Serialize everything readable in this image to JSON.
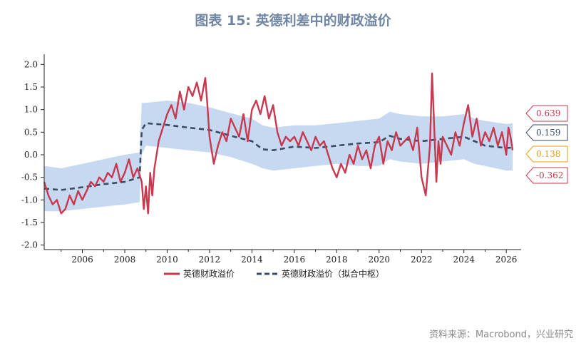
{
  "title": "图表 15: 英德利差中的财政溢价",
  "source": "资料来源：Macrobond，兴业研究",
  "colors": {
    "premium": "#c8384e",
    "fitted": "#3b4a66",
    "band": "#c6d9f1",
    "label_yellow": "#e6a10f"
  },
  "chart_data": {
    "type": "line",
    "title": "图表 15: 英德利差中的财政溢价",
    "xlabel": "",
    "ylabel": "",
    "xlim": [
      2004.2,
      2026.7
    ],
    "ylim": [
      -2.1,
      2.1
    ],
    "x_ticks": [
      2006,
      2008,
      2010,
      2012,
      2014,
      2016,
      2018,
      2020,
      2022,
      2024,
      2026
    ],
    "y_ticks": [
      2.0,
      1.5,
      1.0,
      0.5,
      0.0,
      -0.5,
      -1.0,
      -1.5,
      -2.0
    ],
    "y_tick_labels": [
      "2.0",
      "1.5",
      "1.0",
      "0.5",
      "0.0",
      "-0.5",
      "-1.0",
      "-1.5",
      "-2.0"
    ],
    "legend_position": "bottom",
    "series": [
      {
        "name": "英德财政溢价",
        "style": "solid",
        "x": [
          2004.2,
          2004.4,
          2004.6,
          2004.8,
          2005.0,
          2005.2,
          2005.4,
          2005.6,
          2005.8,
          2006.0,
          2006.2,
          2006.4,
          2006.6,
          2006.8,
          2007.0,
          2007.2,
          2007.4,
          2007.6,
          2007.8,
          2008.0,
          2008.2,
          2008.4,
          2008.6,
          2008.8,
          2008.9,
          2009.0,
          2009.1,
          2009.2,
          2009.3,
          2009.4,
          2009.6,
          2009.8,
          2010.0,
          2010.2,
          2010.4,
          2010.6,
          2010.8,
          2011.0,
          2011.2,
          2011.4,
          2011.6,
          2011.8,
          2011.9,
          2012.0,
          2012.2,
          2012.4,
          2012.6,
          2012.8,
          2013.0,
          2013.2,
          2013.4,
          2013.6,
          2013.8,
          2014.0,
          2014.2,
          2014.4,
          2014.6,
          2014.8,
          2015.0,
          2015.2,
          2015.4,
          2015.6,
          2015.8,
          2016.0,
          2016.2,
          2016.4,
          2016.6,
          2016.8,
          2017.0,
          2017.2,
          2017.4,
          2017.6,
          2017.8,
          2018.0,
          2018.2,
          2018.4,
          2018.6,
          2018.8,
          2019.0,
          2019.2,
          2019.4,
          2019.6,
          2019.8,
          2020.0,
          2020.2,
          2020.4,
          2020.6,
          2020.8,
          2021.0,
          2021.2,
          2021.4,
          2021.6,
          2021.8,
          2022.0,
          2022.2,
          2022.4,
          2022.5,
          2022.6,
          2022.7,
          2022.8,
          2022.9,
          2023.0,
          2023.2,
          2023.4,
          2023.6,
          2023.8,
          2024.0,
          2024.2,
          2024.4,
          2024.6,
          2024.8,
          2025.0,
          2025.2,
          2025.4,
          2025.6,
          2025.8,
          2026.0,
          2026.1,
          2026.2,
          2026.3
        ],
        "y": [
          -0.6,
          -0.9,
          -1.1,
          -1.0,
          -1.3,
          -1.2,
          -0.9,
          -1.1,
          -0.8,
          -1.0,
          -0.8,
          -0.6,
          -0.7,
          -0.5,
          -0.6,
          -0.4,
          -0.5,
          -0.2,
          -0.6,
          -0.4,
          -0.1,
          -0.5,
          -0.3,
          -0.6,
          -1.2,
          -0.7,
          -1.3,
          -0.4,
          -0.9,
          -0.3,
          0.3,
          0.6,
          0.9,
          1.1,
          0.8,
          1.4,
          1.0,
          1.5,
          1.3,
          1.6,
          1.2,
          1.7,
          1.1,
          0.4,
          -0.2,
          0.2,
          0.5,
          0.3,
          0.8,
          0.6,
          0.4,
          0.9,
          0.3,
          1.0,
          1.2,
          0.9,
          1.3,
          0.8,
          1.1,
          0.5,
          0.2,
          0.4,
          0.3,
          0.4,
          0.2,
          0.5,
          0.3,
          0.1,
          0.4,
          0.2,
          0.3,
          0.0,
          -0.3,
          -0.5,
          -0.2,
          -0.4,
          0.0,
          -0.2,
          0.2,
          -0.1,
          0.1,
          -0.3,
          0.2,
          0.4,
          -0.2,
          0.3,
          0.1,
          0.5,
          0.2,
          0.3,
          0.4,
          0.1,
          0.6,
          -0.5,
          -0.9,
          0.2,
          1.8,
          0.6,
          -0.6,
          0.3,
          -0.2,
          0.4,
          0.2,
          0.0,
          0.5,
          0.2,
          0.7,
          1.1,
          0.4,
          0.8,
          0.2,
          0.5,
          0.3,
          0.6,
          0.2,
          0.5,
          0.0,
          0.6,
          0.4,
          0.1
        ]
      },
      {
        "name": "英德财政溢价（拟合中枢）",
        "style": "dashed",
        "x": [
          2004.2,
          2005.0,
          2006.0,
          2007.0,
          2008.0,
          2008.7,
          2008.8,
          2009.0,
          2010.0,
          2011.0,
          2012.0,
          2013.0,
          2014.0,
          2014.5,
          2015.0,
          2016.0,
          2017.0,
          2018.0,
          2019.0,
          2020.0,
          2020.5,
          2021.0,
          2022.0,
          2023.0,
          2024.0,
          2024.5,
          2025.0,
          2026.0,
          2026.3
        ],
        "y": [
          -0.75,
          -0.78,
          -0.72,
          -0.65,
          -0.6,
          -0.5,
          0.55,
          0.7,
          0.66,
          0.6,
          0.55,
          0.42,
          0.3,
          0.12,
          0.1,
          0.18,
          0.15,
          0.2,
          0.25,
          0.28,
          0.42,
          0.35,
          0.3,
          0.35,
          0.4,
          0.3,
          0.2,
          0.15,
          0.159
        ]
      }
    ],
    "band": {
      "name": "",
      "x": [
        2004.2,
        2005.0,
        2006.0,
        2007.0,
        2008.0,
        2008.7,
        2008.8,
        2009.0,
        2010.0,
        2011.0,
        2012.0,
        2013.0,
        2014.0,
        2014.5,
        2015.0,
        2016.0,
        2017.0,
        2018.0,
        2019.0,
        2020.0,
        2020.5,
        2021.0,
        2022.0,
        2023.0,
        2024.0,
        2024.5,
        2025.0,
        2026.0,
        2026.3
      ],
      "upper": [
        -0.25,
        -0.3,
        -0.2,
        -0.1,
        0.0,
        0.05,
        1.15,
        1.15,
        1.2,
        1.15,
        1.05,
        0.92,
        0.8,
        0.65,
        0.6,
        0.65,
        0.65,
        0.7,
        0.75,
        0.8,
        0.95,
        0.9,
        0.85,
        0.85,
        0.9,
        0.8,
        0.75,
        0.68,
        0.7
      ],
      "lower": [
        -1.25,
        -1.25,
        -1.2,
        -1.15,
        -1.1,
        -1.05,
        0.0,
        0.2,
        0.15,
        0.1,
        0.05,
        -0.05,
        -0.2,
        -0.3,
        -0.35,
        -0.3,
        -0.25,
        -0.2,
        -0.25,
        -0.25,
        -0.1,
        -0.15,
        -0.2,
        -0.15,
        -0.1,
        -0.2,
        -0.25,
        -0.35,
        -0.35
      ]
    },
    "value_labels": [
      {
        "text": "0.639",
        "value": 0.639,
        "color": "#c8384e"
      },
      {
        "text": "0.159",
        "value": 0.159,
        "color": "#3b4a66"
      },
      {
        "text": "0.138",
        "value": 0.138,
        "color": "#e6a10f"
      },
      {
        "text": "-0.362",
        "value": -0.362,
        "color": "#c8384e"
      }
    ]
  }
}
